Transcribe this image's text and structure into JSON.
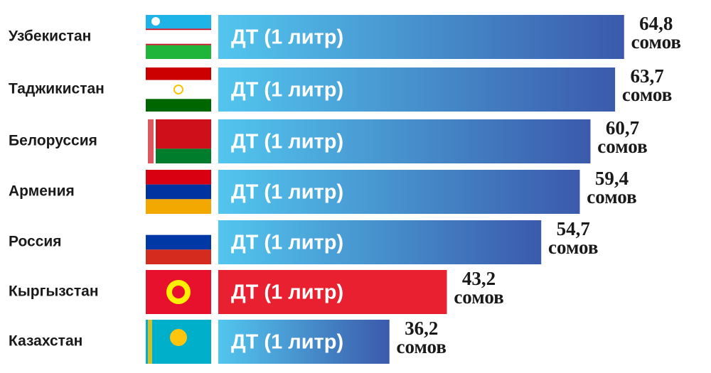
{
  "chart_data": {
    "type": "bar",
    "orientation": "horizontal",
    "categories": [
      "Узбекистан",
      "Таджикистан",
      "Белоруссия",
      "Армения",
      "Россия",
      "Кыргызстан",
      "Казахстан"
    ],
    "values": [
      64.8,
      63.7,
      60.7,
      59.4,
      54.7,
      43.2,
      36.2
    ],
    "value_labels": [
      "64,8 сомов",
      "63,7 сомов",
      "60,7 сомов",
      "59,4 сомов",
      "54,7 сомов",
      "43,2 сомов",
      "36,2 сомов"
    ],
    "bar_label": "ДТ (1 литр)",
    "colors": [
      "#3f63b2",
      "#3f63b2",
      "#3f63b2",
      "#3f63b2",
      "#3f63b2",
      "#e8202f",
      "#3f63b2"
    ]
  }
}
